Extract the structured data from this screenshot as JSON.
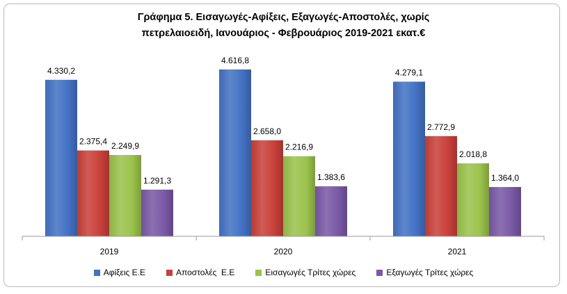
{
  "chart_data": {
    "type": "bar",
    "title_lines": [
      "Γράφημα 5. Εισαγωγές-Αφίξεις, Εξαγωγές-Αποστολές, χωρίς",
      "πετρελαιοειδή, Ιανουάριος - Φεβρουάριος 2019-2021 εκατ.€"
    ],
    "categories": [
      "2019",
      "2020",
      "2021"
    ],
    "ylim": [
      0,
      5000
    ],
    "grid": false,
    "legend_position": "bottom",
    "series": [
      {
        "name": "Αφίξεις Ε.Ε",
        "color": "#4372c4",
        "values": [
          4330.2,
          4616.8,
          4279.1
        ],
        "data_labels": [
          "4.330,2",
          "4.616,8",
          "4.279,1"
        ]
      },
      {
        "name": "Αποστολές  Ε.Ε",
        "color": "#c9403a",
        "values": [
          2375.4,
          2658.0,
          2772.9
        ],
        "data_labels": [
          "2.375,4",
          "2.658,0",
          "2.772,9"
        ]
      },
      {
        "name": "Εισαγωγές Τρίτες χώρες",
        "color": "#9bc34c",
        "values": [
          2249.9,
          2216.9,
          2018.8
        ],
        "data_labels": [
          "2.249,9",
          "2.216,9",
          "2.018,8"
        ]
      },
      {
        "name": "Εξαγωγές Τρίτες χώρες",
        "color": "#7a59a6",
        "values": [
          1291.3,
          1383.6,
          1364.0
        ],
        "data_labels": [
          "1.291,3",
          "1.383,6",
          "1.364,0"
        ]
      }
    ]
  }
}
